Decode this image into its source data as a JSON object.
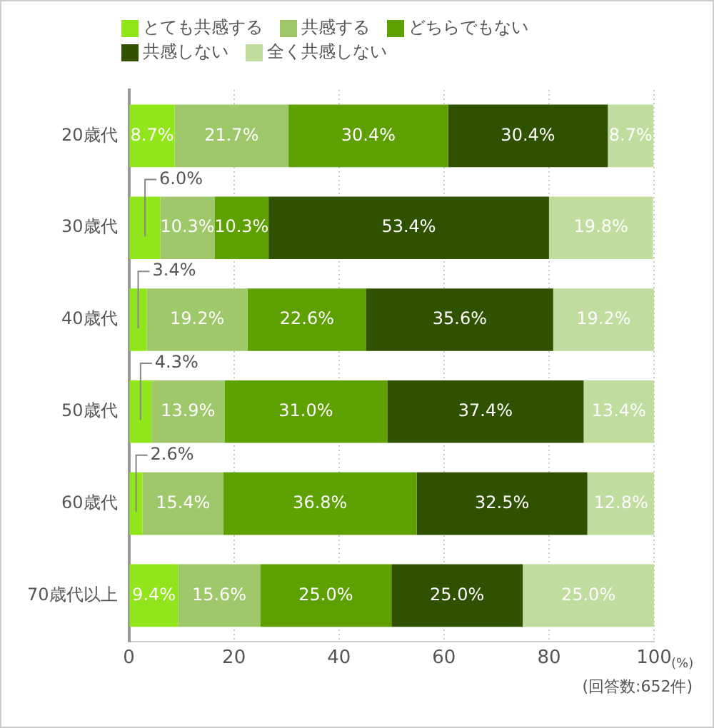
{
  "chart_data": {
    "type": "bar",
    "orientation": "horizontal",
    "stacked": true,
    "categories": [
      "20歳代",
      "30歳代",
      "40歳代",
      "50歳代",
      "60歳代",
      "70歳代以上"
    ],
    "series": [
      {
        "name": "とても共感する",
        "color": "#91e61b",
        "values": [
          8.7,
          6.0,
          3.4,
          4.3,
          2.6,
          9.4
        ],
        "value_labels": [
          "8.7%",
          "6.0%",
          "3.4%",
          "4.3%",
          "2.6%",
          "9.4%"
        ]
      },
      {
        "name": "共感する",
        "color": "#9ec86a",
        "values": [
          21.7,
          10.3,
          19.2,
          13.9,
          15.4,
          15.6
        ],
        "value_labels": [
          "21.7%",
          "10.3%",
          "19.2%",
          "13.9%",
          "15.4%",
          "15.6%"
        ]
      },
      {
        "name": "どちらでもない",
        "color": "#5da000",
        "values": [
          30.4,
          10.3,
          22.6,
          31.0,
          36.8,
          25.0
        ],
        "value_labels": [
          "30.4%",
          "10.3%",
          "22.6%",
          "31.0%",
          "36.8%",
          "25.0%"
        ]
      },
      {
        "name": "共感しない",
        "color": "#2f5100",
        "values": [
          30.4,
          53.4,
          35.6,
          37.4,
          32.5,
          25.0
        ],
        "value_labels": [
          "30.4%",
          "53.4%",
          "35.6%",
          "37.4%",
          "32.5%",
          "25.0%"
        ]
      },
      {
        "name": "全く共感しない",
        "color": "#c0dc9f",
        "values": [
          8.7,
          19.8,
          19.2,
          13.4,
          12.8,
          25.0
        ],
        "value_labels": [
          "8.7%",
          "19.8%",
          "19.2%",
          "13.4%",
          "12.8%",
          "25.0%"
        ]
      }
    ],
    "xlim": [
      0,
      100
    ],
    "xticks": [
      0,
      20,
      40,
      60,
      80,
      100
    ],
    "grid": "x",
    "legend": "top left",
    "annotations": [
      "(%)",
      "(回答数:652件)"
    ]
  }
}
